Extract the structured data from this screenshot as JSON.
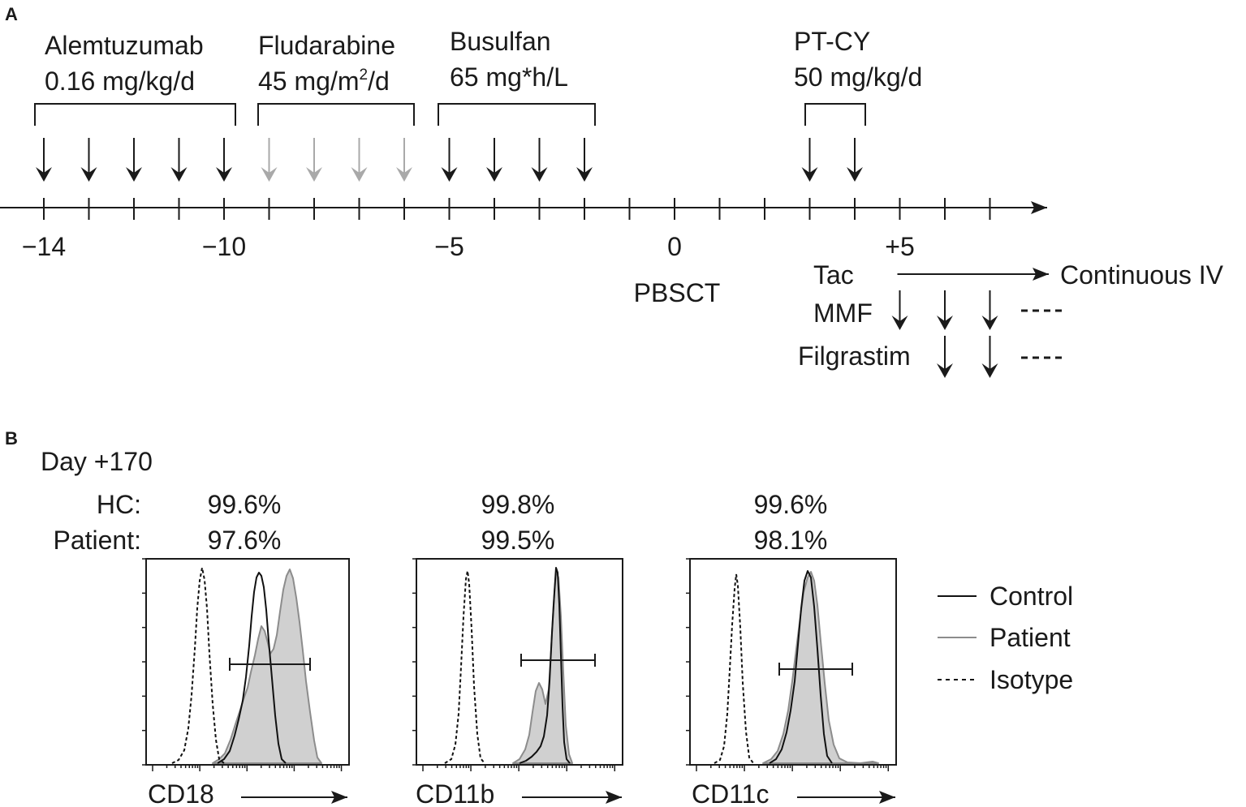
{
  "colors": {
    "ink": "#1a1a1a",
    "gray_arrow": "#a9a9a9",
    "patient_fill": "#d0d0d0",
    "patient_line": "#8c8c8c"
  },
  "panel_a": {
    "letter": "A",
    "drugs": [
      {
        "name": "Alemtuzumab",
        "dose": "0.16 mg/kg/d",
        "days": [
          -14,
          -13,
          -12,
          -11,
          -10
        ],
        "arrow_color": "dark"
      },
      {
        "name": "Fludarabine",
        "dose": "45 mg/m",
        "dose_sup": "2",
        "dose_suffix": "/d",
        "days": [
          -9,
          -8,
          -7,
          -6
        ],
        "arrow_color": "gray"
      },
      {
        "name": "Busulfan",
        "dose": "65 mg*h/L",
        "days": [
          -5,
          -4,
          -3,
          -2
        ],
        "arrow_color": "dark"
      },
      {
        "name": "PT-CY",
        "dose": "50 mg/kg/d",
        "days": [
          3,
          4
        ],
        "arrow_color": "dark"
      }
    ],
    "timeline": {
      "day_min": -14,
      "day_max": 7
    },
    "tick_labels": [
      {
        "day": -14,
        "text": "−14"
      },
      {
        "day": -10,
        "text": "−10"
      },
      {
        "day": -5,
        "text": "−5"
      },
      {
        "day": 0,
        "text": "0"
      },
      {
        "day": 5,
        "text": "+5"
      }
    ],
    "transplant_label": "PBSCT",
    "post_transplant": {
      "tac": {
        "label": "Tac",
        "note": "Continuous IV",
        "start_day": 5
      },
      "mmf": {
        "label": "MMF",
        "days": [
          5,
          6,
          7
        ]
      },
      "filgrastim": {
        "label": "Filgrastim",
        "days": [
          6,
          7
        ]
      }
    }
  },
  "panel_b": {
    "letter": "B",
    "timepoint": "Day +170",
    "row_labels": {
      "hc": "HC:",
      "patient": "Patient:"
    },
    "histograms": [
      {
        "marker": "CD18",
        "hc_pct": "99.6%",
        "patient_pct": "97.6%"
      },
      {
        "marker": "CD11b",
        "hc_pct": "99.8%",
        "patient_pct": "99.5%"
      },
      {
        "marker": "CD11c",
        "hc_pct": "99.6%",
        "patient_pct": "98.1%"
      }
    ],
    "legend": [
      {
        "label": "Control",
        "style": "solid-black"
      },
      {
        "label": "Patient",
        "style": "solid-gray"
      },
      {
        "label": "Isotype",
        "style": "dashed-black"
      }
    ]
  }
}
